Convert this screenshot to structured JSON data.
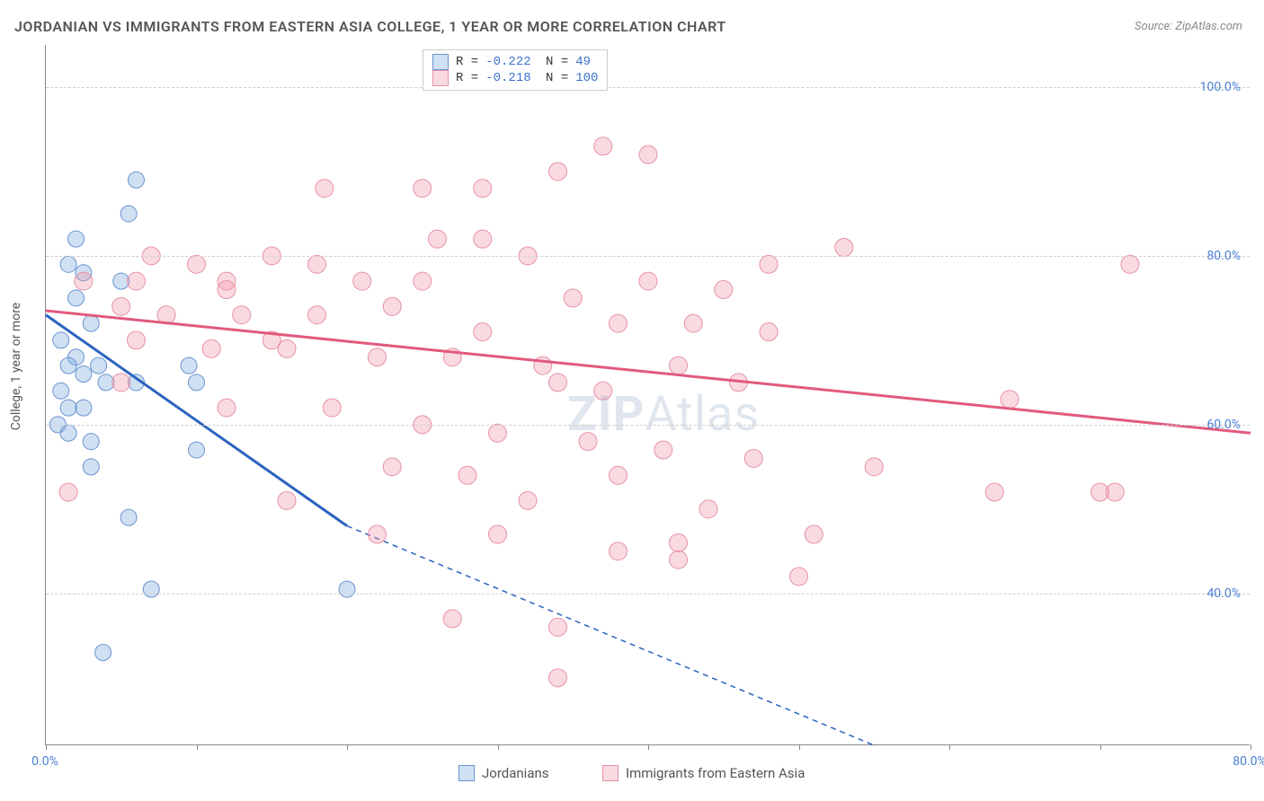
{
  "title": "JORDANIAN VS IMMIGRANTS FROM EASTERN ASIA COLLEGE, 1 YEAR OR MORE CORRELATION CHART",
  "source": "Source: ZipAtlas.com",
  "watermark_a": "ZIP",
  "watermark_b": "Atlas",
  "ylabel": "College, 1 year or more",
  "chart": {
    "type": "scatter",
    "xlim": [
      0,
      80
    ],
    "ylim": [
      22,
      105
    ],
    "yticks": [
      40,
      60,
      80,
      100
    ],
    "ytick_labels": [
      "40.0%",
      "60.0%",
      "80.0%",
      "100.0%"
    ],
    "xticks": [
      0,
      10,
      20,
      30,
      40,
      50,
      60,
      70,
      80
    ],
    "xtick_left_label": "0.0%",
    "xtick_right_label": "80.0%",
    "background_color": "#ffffff",
    "grid_color": "#d0d0d0",
    "axis_color": "#888888",
    "series": [
      {
        "name": "Jordanians",
        "color_fill": "rgba(120,165,220,0.35)",
        "color_stroke": "#6994d0",
        "line_color": "#2b63c0",
        "r_value": "-0.222",
        "n_value": "49",
        "marker_radius": 9,
        "trend_solid": {
          "x1": 0,
          "y1": 73,
          "x2": 20,
          "y2": 48
        },
        "trend_dashed": {
          "x1": 20,
          "y1": 48,
          "x2": 55,
          "y2": 22
        },
        "points": [
          [
            6,
            89
          ],
          [
            5.5,
            85
          ],
          [
            2,
            82
          ],
          [
            1.5,
            79
          ],
          [
            2.5,
            78
          ],
          [
            2,
            75
          ],
          [
            5,
            77
          ],
          [
            3,
            72
          ],
          [
            1,
            70
          ],
          [
            2,
            68
          ],
          [
            1.5,
            67
          ],
          [
            3.5,
            67
          ],
          [
            2.5,
            66
          ],
          [
            4,
            65
          ],
          [
            1,
            64
          ],
          [
            6,
            65
          ],
          [
            1.5,
            62
          ],
          [
            2.5,
            62
          ],
          [
            0.8,
            60
          ],
          [
            1.5,
            59
          ],
          [
            3,
            58
          ],
          [
            3,
            55
          ],
          [
            5.5,
            49
          ],
          [
            9.5,
            67
          ],
          [
            10,
            65
          ],
          [
            10,
            57
          ],
          [
            7,
            40.5
          ],
          [
            3.8,
            33
          ],
          [
            20,
            40.5
          ]
        ]
      },
      {
        "name": "Immigants_from_Eastern_Asia",
        "display_name": "Immigrants from Eastern Asia",
        "color_fill": "rgba(240,150,170,0.35)",
        "color_stroke": "#e792a5",
        "line_color": "#e15a7e",
        "r_value": "-0.218",
        "n_value": "100",
        "marker_radius": 10,
        "trend_solid": {
          "x1": 0,
          "y1": 73.5,
          "x2": 80,
          "y2": 59
        },
        "points": [
          [
            37,
            93
          ],
          [
            40,
            92
          ],
          [
            34,
            90
          ],
          [
            18.5,
            88
          ],
          [
            25,
            88
          ],
          [
            29,
            88
          ],
          [
            53,
            81
          ],
          [
            26,
            82
          ],
          [
            29,
            82
          ],
          [
            7,
            80
          ],
          [
            15,
            80
          ],
          [
            10,
            79
          ],
          [
            18,
            79
          ],
          [
            32,
            80
          ],
          [
            48,
            79
          ],
          [
            72,
            79
          ],
          [
            2.5,
            77
          ],
          [
            6,
            77
          ],
          [
            12,
            77
          ],
          [
            21,
            77
          ],
          [
            25,
            77
          ],
          [
            35,
            75
          ],
          [
            40,
            77
          ],
          [
            45,
            76
          ],
          [
            5,
            74
          ],
          [
            8,
            73
          ],
          [
            13,
            73
          ],
          [
            18,
            73
          ],
          [
            23,
            74
          ],
          [
            29,
            71
          ],
          [
            38,
            72
          ],
          [
            43,
            72
          ],
          [
            48,
            71
          ],
          [
            6,
            70
          ],
          [
            11,
            69
          ],
          [
            16,
            69
          ],
          [
            22,
            68
          ],
          [
            27,
            68
          ],
          [
            33,
            67
          ],
          [
            42,
            67
          ],
          [
            5,
            65
          ],
          [
            34,
            65
          ],
          [
            37,
            64
          ],
          [
            46,
            65
          ],
          [
            64,
            63
          ],
          [
            12,
            62
          ],
          [
            19,
            62
          ],
          [
            25,
            60
          ],
          [
            30,
            59
          ],
          [
            36,
            58
          ],
          [
            41,
            57
          ],
          [
            47,
            56
          ],
          [
            55,
            55
          ],
          [
            23,
            55
          ],
          [
            28,
            54
          ],
          [
            38,
            54
          ],
          [
            1.5,
            52
          ],
          [
            16,
            51
          ],
          [
            32,
            51
          ],
          [
            44,
            50
          ],
          [
            63,
            52
          ],
          [
            70,
            52
          ],
          [
            51,
            47
          ],
          [
            30,
            47
          ],
          [
            38,
            45
          ],
          [
            42,
            44
          ],
          [
            22,
            47
          ],
          [
            50,
            42
          ],
          [
            34,
            30
          ],
          [
            42,
            46
          ],
          [
            27,
            37
          ],
          [
            34,
            36
          ],
          [
            15,
            70
          ],
          [
            12,
            76
          ],
          [
            71,
            52
          ]
        ]
      }
    ]
  },
  "legend_bottom": [
    {
      "label": "Jordanians",
      "fill": "rgba(120,165,220,0.35)",
      "stroke": "#6994d0"
    },
    {
      "label": "Immigrants from Eastern Asia",
      "fill": "rgba(240,150,170,0.35)",
      "stroke": "#e792a5"
    }
  ]
}
